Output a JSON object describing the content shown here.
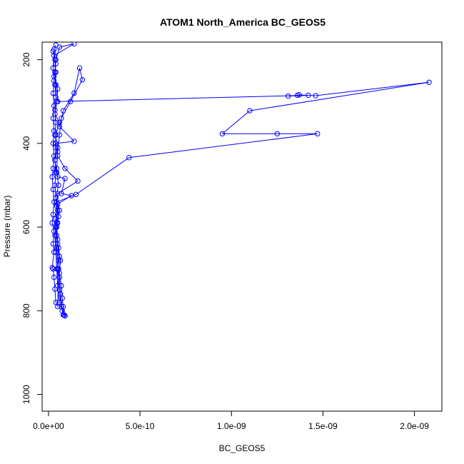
{
  "chart_data": {
    "type": "scatter",
    "title": "ATOM1 North_America BC_GEOS5",
    "xlabel": "BC_GEOS5",
    "ylabel": "Pressure (mbar)",
    "xlim": [
      -3.5e-11,
      2.15e-09
    ],
    "ylim": [
      1040,
      158
    ],
    "y_inverted": true,
    "grid": false,
    "legend": "none",
    "x_ticks": [
      {
        "value": 0,
        "label": "0.0e+00"
      },
      {
        "value": 5e-10,
        "label": "5.0e-10"
      },
      {
        "value": 1e-09,
        "label": "1.0e-09"
      },
      {
        "value": 1.5e-09,
        "label": "1.5e-09"
      },
      {
        "value": 2e-09,
        "label": "2.0e-09"
      }
    ],
    "y_ticks": [
      {
        "value": 200,
        "label": "200"
      },
      {
        "value": 400,
        "label": "400"
      },
      {
        "value": 600,
        "label": "600"
      },
      {
        "value": 800,
        "label": "800"
      },
      {
        "value": 1000,
        "label": "1000"
      }
    ],
    "series": [
      {
        "color": "#0000ff",
        "marker": "open-circle",
        "line": true,
        "points": [
          [
            2.5e-11,
            180
          ],
          [
            4e-11,
            210
          ],
          [
            3e-11,
            240
          ],
          [
            5e-11,
            270
          ],
          [
            4.5e-11,
            300
          ],
          [
            3.5e-11,
            330
          ],
          [
            6e-11,
            350
          ],
          [
            4e-11,
            380
          ],
          [
            5e-11,
            410
          ],
          [
            3.5e-11,
            440
          ],
          [
            4.5e-11,
            470
          ],
          [
            5.5e-11,
            500
          ],
          [
            4e-11,
            530
          ],
          [
            6e-11,
            560
          ],
          [
            5e-11,
            590
          ],
          [
            4.5e-11,
            620
          ],
          [
            5.5e-11,
            650
          ],
          [
            6.5e-11,
            680
          ],
          [
            6e-11,
            710
          ],
          [
            7e-11,
            740
          ],
          [
            7.5e-11,
            770
          ],
          [
            8e-11,
            790
          ],
          [
            8.5e-11,
            810
          ],
          [
            9e-11,
            812
          ],
          [
            7e-11,
            790
          ],
          [
            6e-11,
            750
          ],
          [
            5e-11,
            700
          ],
          [
            4.5e-11,
            650
          ],
          [
            4e-11,
            600
          ],
          [
            4.5e-11,
            550
          ],
          [
            5e-11,
            520
          ],
          [
            1.6e-10,
            490
          ],
          [
            9e-11,
            460
          ],
          [
            5e-11,
            430
          ],
          [
            4e-11,
            400
          ],
          [
            1.4e-10,
            395
          ],
          [
            6e-11,
            360
          ],
          [
            8e-11,
            322
          ],
          [
            1.4e-10,
            280
          ],
          [
            1.7e-10,
            220
          ],
          [
            1.85e-10,
            248
          ],
          [
            1.2e-10,
            300
          ],
          [
            7e-11,
            340
          ],
          [
            6e-11,
            380
          ],
          [
            5e-11,
            420
          ],
          [
            4.5e-11,
            460
          ],
          [
            5e-11,
            480
          ],
          [
            9e-11,
            484
          ],
          [
            7e-11,
            520
          ],
          [
            1.25e-10,
            525
          ],
          [
            5e-11,
            545
          ],
          [
            5.5e-11,
            575
          ],
          [
            4.5e-11,
            600
          ],
          [
            5e-11,
            640
          ],
          [
            5.5e-11,
            680
          ],
          [
            6e-11,
            720
          ],
          [
            6.5e-11,
            760
          ],
          [
            7.5e-11,
            800
          ],
          [
            8e-11,
            810
          ],
          [
            9e-11,
            812
          ],
          [
            6e-11,
            780
          ],
          [
            5e-11,
            740
          ],
          [
            4.5e-11,
            700
          ],
          [
            4e-11,
            660
          ],
          [
            3.5e-11,
            620
          ],
          [
            4e-11,
            580
          ],
          [
            4.5e-11,
            540
          ],
          [
            1.5e-10,
            522
          ],
          [
            4.4e-10,
            434
          ],
          [
            1.47e-09,
            377
          ],
          [
            1.25e-09,
            377
          ],
          [
            9.5e-10,
            377
          ],
          [
            1.1e-09,
            322
          ],
          [
            2.08e-09,
            254
          ],
          [
            1.46e-09,
            286
          ],
          [
            1.37e-09,
            284
          ],
          [
            1.36e-09,
            285
          ],
          [
            1.31e-09,
            287
          ],
          [
            1.42e-09,
            285
          ],
          [
            5e-11,
            300
          ],
          [
            4e-11,
            260
          ],
          [
            3.5e-11,
            230
          ],
          [
            4e-11,
            200
          ],
          [
            6e-11,
            170
          ],
          [
            1.4e-10,
            162
          ],
          [
            3e-11,
            190
          ],
          [
            2.5e-11,
            220
          ],
          [
            3e-11,
            250
          ],
          [
            2.5e-11,
            280
          ],
          [
            3e-11,
            310
          ],
          [
            2.5e-11,
            340
          ],
          [
            3e-11,
            370
          ],
          [
            2.5e-11,
            400
          ],
          [
            3e-11,
            430
          ],
          [
            2.5e-11,
            460
          ],
          [
            2e-11,
            480
          ],
          [
            2.5e-11,
            510
          ],
          [
            3e-11,
            540
          ],
          [
            2.5e-11,
            570
          ],
          [
            2e-11,
            590
          ],
          [
            3e-11,
            610
          ],
          [
            2.5e-11,
            640
          ],
          [
            3e-11,
            660
          ],
          [
            2e-11,
            697
          ],
          [
            2.5e-11,
            700
          ],
          [
            3e-11,
            720
          ],
          [
            3.5e-11,
            748
          ],
          [
            4e-11,
            780
          ],
          [
            5e-11,
            790
          ],
          [
            5.5e-11,
            700
          ],
          [
            6e-11,
            670
          ],
          [
            5e-11,
            630
          ],
          [
            4.5e-11,
            590
          ],
          [
            5e-11,
            560
          ],
          [
            4e-11,
            530
          ],
          [
            3.5e-11,
            500
          ],
          [
            4e-11,
            470
          ],
          [
            3.5e-11,
            440
          ],
          [
            4e-11,
            410
          ],
          [
            3.5e-11,
            380
          ],
          [
            4e-11,
            350
          ],
          [
            3.5e-11,
            320
          ],
          [
            4e-11,
            290
          ],
          [
            3.5e-11,
            260
          ],
          [
            4e-11,
            230
          ],
          [
            3.5e-11,
            200
          ],
          [
            3e-11,
            175
          ],
          [
            4e-11,
            165
          ]
        ]
      }
    ]
  }
}
